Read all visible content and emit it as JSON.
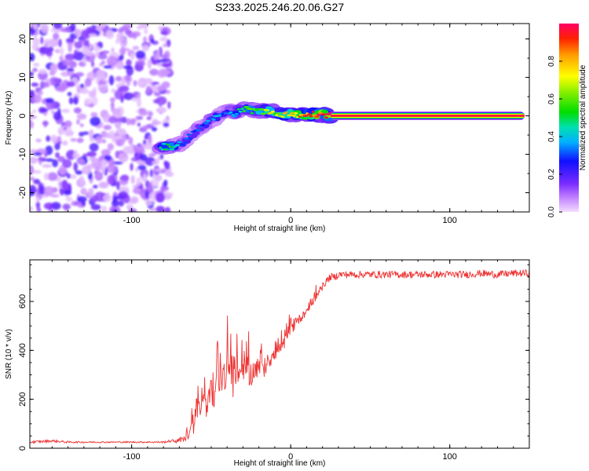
{
  "chart_data": [
    {
      "type": "heatmap",
      "title": "S233.2025.246.20.06.G27",
      "xlabel": "Height of straight line (km)",
      "ylabel": "Frequency (Hz)",
      "xlim": [
        -164,
        150
      ],
      "ylim": [
        -25,
        24
      ],
      "x_ticks": [
        -100,
        0,
        100
      ],
      "x_tick_labels": [
        "-100",
        "0",
        "100"
      ],
      "y_ticks": [
        -20,
        -10,
        0,
        10,
        20
      ],
      "y_tick_labels": [
        "-20",
        "-10",
        "0",
        "10",
        "20"
      ],
      "colorbar": {
        "label": "Normalized spectral amplitude",
        "range": [
          0,
          1
        ],
        "ticks": [
          0,
          0.2,
          0.4,
          0.6,
          0.8
        ],
        "tick_labels": [
          "0.0",
          "0.2",
          "0.4",
          "0.6",
          "0.8"
        ]
      },
      "noise_region_x": [
        -164,
        -80
      ],
      "ridge": {
        "description_points_x": [
          -82,
          -75,
          -70,
          -65,
          -60,
          -55,
          -50,
          -45,
          -40,
          -35,
          -30,
          -25,
          -20,
          -15,
          -10,
          -5,
          0,
          5,
          10,
          15,
          20,
          25,
          150
        ],
        "frequency_hz": [
          -8,
          -8,
          -7.5,
          -6,
          -4,
          -2.5,
          -1,
          0,
          1.5,
          0.5,
          2,
          1.5,
          1,
          1.5,
          1,
          0.5,
          0.5,
          0.3,
          0.2,
          0.5,
          0.3,
          0,
          0
        ],
        "amplitude": [
          0.45,
          0.5,
          0.35,
          0.3,
          0.3,
          0.3,
          0.35,
          0.35,
          0.3,
          0.4,
          0.5,
          0.55,
          0.6,
          0.7,
          0.65,
          0.7,
          0.75,
          0.8,
          0.85,
          0.9,
          0.95,
          1.0,
          1.0
        ]
      }
    },
    {
      "type": "line",
      "xlabel": "Height of straight line (km)",
      "ylabel": "SNR (10 * v/v)",
      "xlim": [
        -164,
        150
      ],
      "ylim": [
        0,
        770
      ],
      "x_ticks": [
        -100,
        0,
        100
      ],
      "x_tick_labels": [
        "-100",
        "0",
        "100"
      ],
      "y_ticks": [
        0,
        200,
        400,
        600
      ],
      "y_tick_labels": [
        "0",
        "200",
        "400",
        "600"
      ],
      "series": [
        {
          "name": "SNR",
          "color": "#ee3333",
          "x": [
            -164,
            -150,
            -140,
            -120,
            -100,
            -90,
            -80,
            -75,
            -70,
            -67,
            -64,
            -62,
            -60,
            -58,
            -56,
            -54,
            -52,
            -50,
            -48,
            -46,
            -44,
            -42,
            -40,
            -38,
            -36,
            -34,
            -32,
            -30,
            -28,
            -26,
            -24,
            -22,
            -20,
            -18,
            -16,
            -14,
            -12,
            -10,
            -8,
            -6,
            -4,
            -2,
            0,
            2,
            4,
            6,
            8,
            10,
            12,
            14,
            16,
            18,
            20,
            22,
            25,
            28,
            30,
            35,
            40,
            50,
            60,
            70,
            80,
            90,
            100,
            110,
            120,
            130,
            140,
            150
          ],
          "y": [
            25,
            30,
            25,
            25,
            25,
            25,
            25,
            30,
            30,
            40,
            60,
            80,
            130,
            180,
            150,
            200,
            170,
            230,
            220,
            260,
            240,
            290,
            330,
            300,
            260,
            310,
            290,
            300,
            320,
            300,
            310,
            330,
            320,
            340,
            330,
            360,
            370,
            380,
            400,
            400,
            430,
            460,
            480,
            500,
            520,
            530,
            550,
            560,
            580,
            600,
            620,
            640,
            660,
            680,
            700,
            700,
            710,
            710,
            710,
            710,
            710,
            710,
            710,
            710,
            710,
            710,
            715,
            710,
            715,
            715
          ],
          "noise_amplitude": [
            10,
            10,
            8,
            6,
            6,
            6,
            8,
            10,
            20,
            30,
            50,
            80,
            120,
            120,
            100,
            120,
            110,
            130,
            120,
            140,
            130,
            140,
            150,
            140,
            120,
            120,
            110,
            110,
            110,
            100,
            100,
            90,
            90,
            90,
            80,
            80,
            70,
            70,
            60,
            60,
            50,
            50,
            45,
            45,
            40,
            40,
            40,
            35,
            35,
            35,
            30,
            30,
            30,
            30,
            30,
            30,
            30,
            30,
            30,
            30,
            30,
            30,
            30,
            30,
            30,
            30,
            30,
            30,
            30,
            30
          ]
        }
      ]
    }
  ]
}
